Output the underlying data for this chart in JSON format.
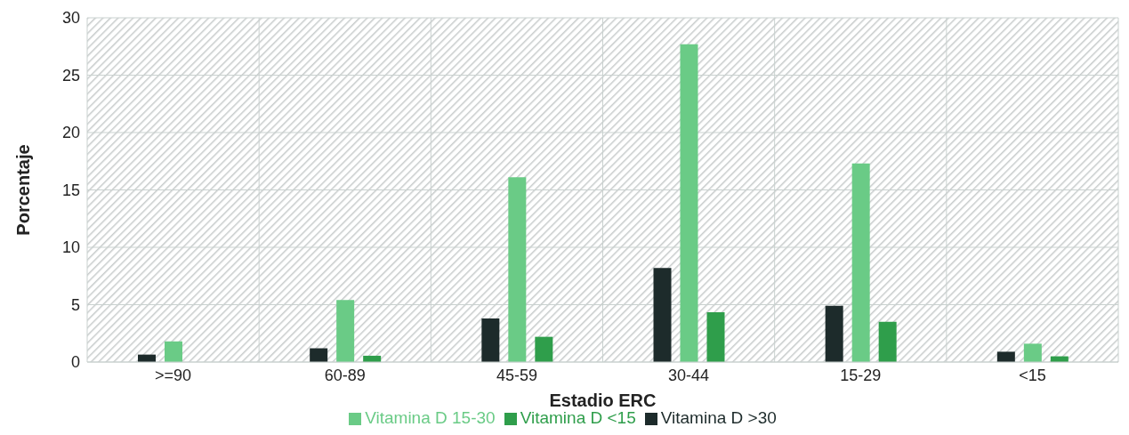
{
  "chart_data": {
    "type": "bar",
    "xlabel": "Estadio ERC",
    "ylabel": "Porcentaje",
    "categories": [
      ">=90",
      "60-89",
      "45-59",
      "30-44",
      "15-29",
      "<15"
    ],
    "series": [
      {
        "name": "Vitamina D >30",
        "color": "#1d2b2b",
        "values": [
          0.65,
          1.2,
          3.8,
          8.2,
          4.9,
          0.9
        ]
      },
      {
        "name": "Vitamina D 15-30",
        "color": "#6acb86",
        "values": [
          1.8,
          5.4,
          16.1,
          27.7,
          17.3,
          1.6
        ]
      },
      {
        "name": "Vitamina D <15",
        "color": "#2f9e4b",
        "values": [
          0,
          0.55,
          2.2,
          4.35,
          3.5,
          0.5
        ]
      }
    ],
    "ylim": [
      0,
      30
    ],
    "yticks": [
      0,
      5,
      10,
      15,
      20,
      25,
      30
    ],
    "grid": true,
    "legend": "bottom"
  }
}
